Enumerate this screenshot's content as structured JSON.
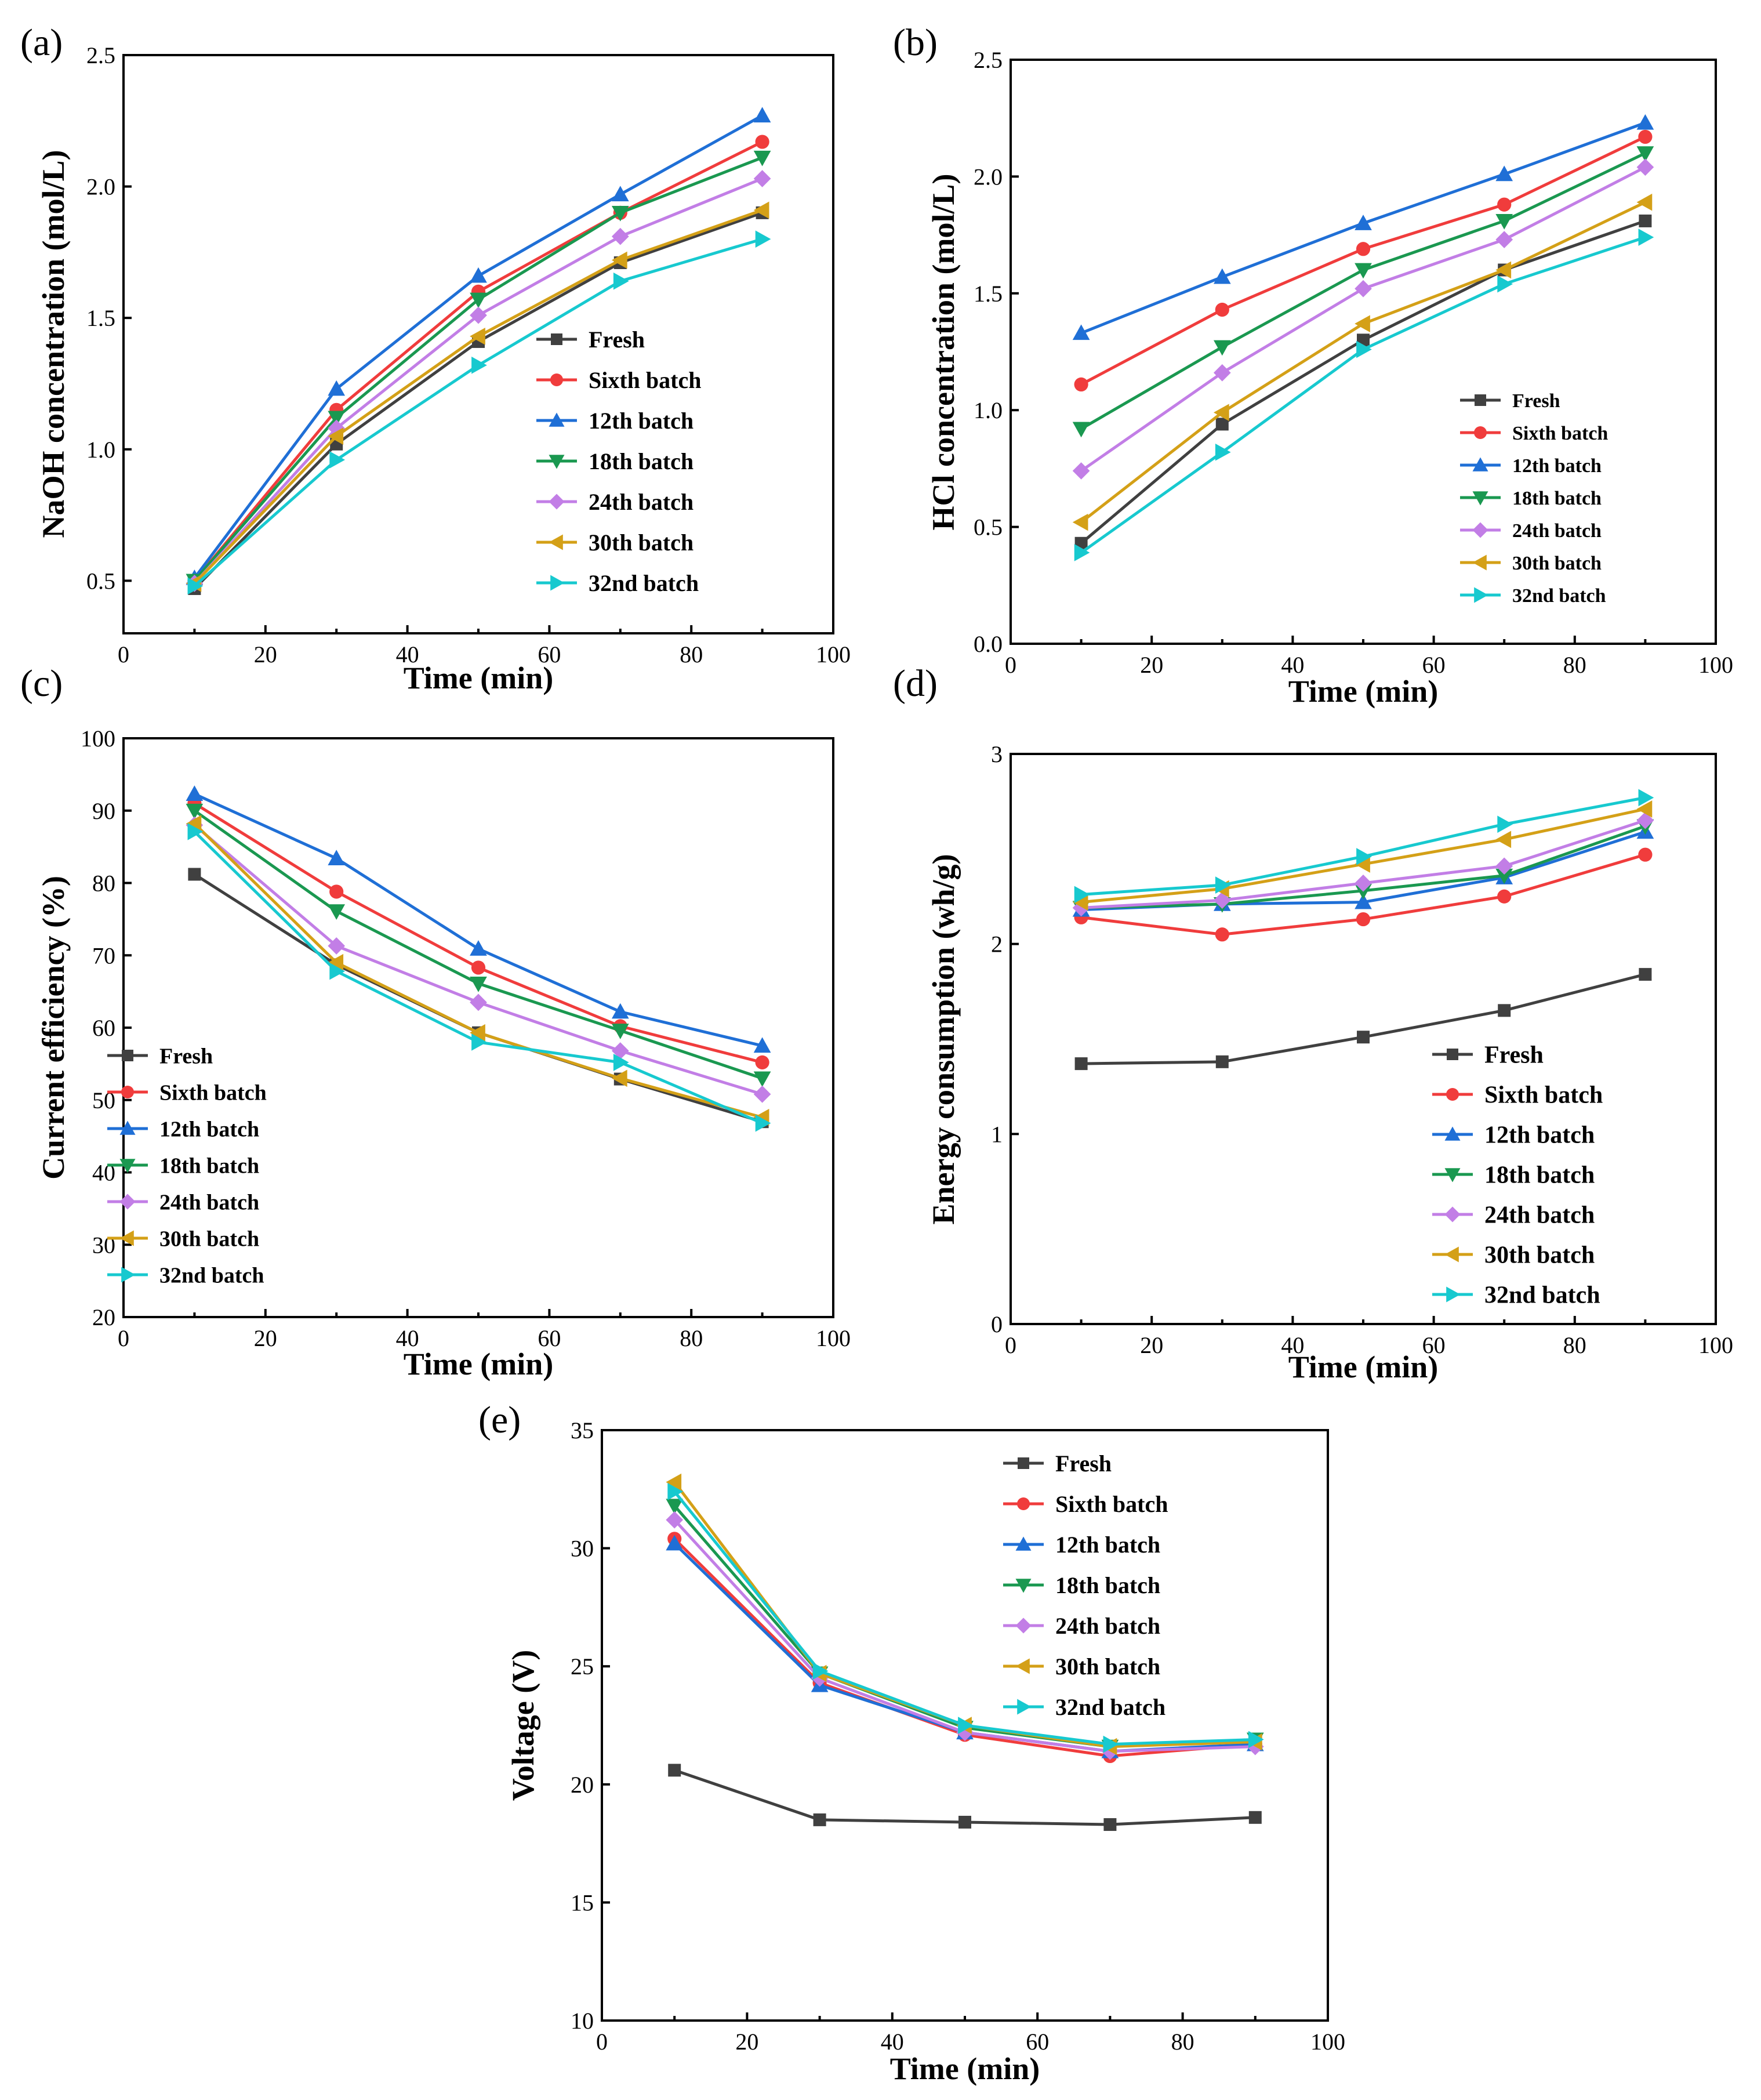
{
  "chart_data": [
    {
      "type": "line",
      "panel_label": "(a)",
      "xlabel": "Time (min)",
      "ylabel": "NaOH concentration (mol/L)",
      "xlim": [
        0,
        100
      ],
      "ylim": [
        0.3,
        2.5
      ],
      "xticks": [
        0,
        20,
        40,
        60,
        80,
        100
      ],
      "yticks": [
        0.5,
        1.0,
        1.5,
        2.0,
        2.5
      ],
      "ytick_labels": [
        "0.5",
        "1.0",
        "1.5",
        "2.0",
        "2.5"
      ],
      "legend_position": "right",
      "x": [
        10,
        30,
        50,
        70,
        90
      ],
      "series": [
        {
          "name": "Fresh",
          "color": "#404040",
          "marker": "square",
          "values": [
            0.47,
            1.02,
            1.41,
            1.71,
            1.9
          ]
        },
        {
          "name": "Sixth batch",
          "color": "#f03c3c",
          "marker": "circle",
          "values": [
            0.5,
            1.15,
            1.6,
            1.9,
            2.17
          ]
        },
        {
          "name": "12th batch",
          "color": "#1f6fd6",
          "marker": "triangle-up",
          "values": [
            0.51,
            1.23,
            1.66,
            1.97,
            2.27
          ]
        },
        {
          "name": "18th batch",
          "color": "#1a9850",
          "marker": "triangle-down",
          "values": [
            0.5,
            1.12,
            1.57,
            1.9,
            2.11
          ]
        },
        {
          "name": "24th batch",
          "color": "#c27ee6",
          "marker": "diamond",
          "values": [
            0.49,
            1.08,
            1.51,
            1.81,
            2.03
          ]
        },
        {
          "name": "30th batch",
          "color": "#d4a017",
          "marker": "triangle-left",
          "values": [
            0.49,
            1.05,
            1.43,
            1.72,
            1.91
          ]
        },
        {
          "name": "32nd batch",
          "color": "#17c9cf",
          "marker": "triangle-right",
          "values": [
            0.48,
            0.96,
            1.32,
            1.64,
            1.8
          ]
        }
      ]
    },
    {
      "type": "line",
      "panel_label": "(b)",
      "xlabel": "Time (min)",
      "ylabel": "HCl concentration (mol/L)",
      "xlim": [
        0,
        100
      ],
      "ylim": [
        0,
        2.5
      ],
      "xticks": [
        0,
        20,
        40,
        60,
        80,
        100
      ],
      "yticks": [
        0.0,
        0.5,
        1.0,
        1.5,
        2.0,
        2.5
      ],
      "ytick_labels": [
        "0.0",
        "0.5",
        "1.0",
        "1.5",
        "2.0",
        "2.5"
      ],
      "legend_position": "bottom-right",
      "x": [
        10,
        30,
        50,
        70,
        90
      ],
      "series": [
        {
          "name": "Fresh",
          "color": "#404040",
          "marker": "square",
          "values": [
            0.43,
            0.94,
            1.3,
            1.6,
            1.81
          ]
        },
        {
          "name": "Sixth batch",
          "color": "#f03c3c",
          "marker": "circle",
          "values": [
            1.11,
            1.43,
            1.69,
            1.88,
            2.17
          ]
        },
        {
          "name": "12th batch",
          "color": "#1f6fd6",
          "marker": "triangle-up",
          "values": [
            1.33,
            1.57,
            1.8,
            2.01,
            2.23
          ]
        },
        {
          "name": "18th batch",
          "color": "#1a9850",
          "marker": "triangle-down",
          "values": [
            0.92,
            1.27,
            1.6,
            1.81,
            2.1
          ]
        },
        {
          "name": "24th batch",
          "color": "#c27ee6",
          "marker": "diamond",
          "values": [
            0.74,
            1.16,
            1.52,
            1.73,
            2.04
          ]
        },
        {
          "name": "30th batch",
          "color": "#d4a017",
          "marker": "triangle-left",
          "values": [
            0.52,
            0.99,
            1.37,
            1.6,
            1.89
          ]
        },
        {
          "name": "32nd batch",
          "color": "#17c9cf",
          "marker": "triangle-right",
          "values": [
            0.39,
            0.82,
            1.26,
            1.54,
            1.74
          ]
        }
      ]
    },
    {
      "type": "line",
      "panel_label": "(c)",
      "xlabel": "Time (min)",
      "ylabel": "Current efficiency (%)",
      "xlim": [
        0,
        100
      ],
      "ylim": [
        20,
        100
      ],
      "xticks": [
        0,
        20,
        40,
        60,
        80,
        100
      ],
      "yticks": [
        20,
        30,
        40,
        50,
        60,
        70,
        80,
        90,
        100
      ],
      "ytick_labels": [
        "20",
        "30",
        "40",
        "50",
        "60",
        "70",
        "80",
        "90",
        "100"
      ],
      "legend_position": "bottom-left",
      "x": [
        10,
        30,
        50,
        70,
        90
      ],
      "series": [
        {
          "name": "Fresh",
          "color": "#404040",
          "marker": "square",
          "values": [
            81.2,
            68.7,
            59.3,
            52.9,
            47.0
          ]
        },
        {
          "name": "Sixth batch",
          "color": "#f03c3c",
          "marker": "circle",
          "values": [
            91.0,
            78.8,
            68.3,
            60.2,
            55.2
          ]
        },
        {
          "name": "12th batch",
          "color": "#1f6fd6",
          "marker": "triangle-up",
          "values": [
            92.3,
            83.4,
            70.9,
            62.2,
            57.5
          ]
        },
        {
          "name": "18th batch",
          "color": "#1a9850",
          "marker": "triangle-down",
          "values": [
            90.0,
            76.1,
            66.1,
            59.6,
            53.0
          ]
        },
        {
          "name": "24th batch",
          "color": "#c27ee6",
          "marker": "diamond",
          "values": [
            88.0,
            71.3,
            63.5,
            56.8,
            50.8
          ]
        },
        {
          "name": "30th batch",
          "color": "#d4a017",
          "marker": "triangle-left",
          "values": [
            88.2,
            69.0,
            59.3,
            53.0,
            47.6
          ]
        },
        {
          "name": "32nd batch",
          "color": "#17c9cf",
          "marker": "triangle-right",
          "values": [
            87.1,
            67.8,
            58.0,
            55.2,
            46.8
          ]
        }
      ]
    },
    {
      "type": "line",
      "panel_label": "(d)",
      "xlabel": "Time (min)",
      "ylabel": "Energy consumption (wh/g)",
      "xlim": [
        0,
        100
      ],
      "ylim": [
        0,
        3
      ],
      "xticks": [
        0,
        20,
        40,
        60,
        80,
        100
      ],
      "yticks": [
        0,
        1,
        2,
        3
      ],
      "ytick_labels": [
        "0",
        "1",
        "2",
        "3"
      ],
      "legend_position": "bottom-right",
      "x": [
        10,
        30,
        50,
        70,
        90
      ],
      "series": [
        {
          "name": "Fresh",
          "color": "#404040",
          "marker": "square",
          "values": [
            1.37,
            1.38,
            1.51,
            1.65,
            1.84
          ]
        },
        {
          "name": "Sixth batch",
          "color": "#f03c3c",
          "marker": "circle",
          "values": [
            2.14,
            2.05,
            2.13,
            2.25,
            2.47
          ]
        },
        {
          "name": "12th batch",
          "color": "#1f6fd6",
          "marker": "triangle-up",
          "values": [
            2.18,
            2.21,
            2.22,
            2.35,
            2.59
          ]
        },
        {
          "name": "18th batch",
          "color": "#1a9850",
          "marker": "triangle-down",
          "values": [
            2.19,
            2.21,
            2.28,
            2.36,
            2.62
          ]
        },
        {
          "name": "24th batch",
          "color": "#c27ee6",
          "marker": "diamond",
          "values": [
            2.19,
            2.23,
            2.32,
            2.41,
            2.65
          ]
        },
        {
          "name": "30th batch",
          "color": "#d4a017",
          "marker": "triangle-left",
          "values": [
            2.22,
            2.29,
            2.42,
            2.55,
            2.71
          ]
        },
        {
          "name": "32nd batch",
          "color": "#17c9cf",
          "marker": "triangle-right",
          "values": [
            2.26,
            2.31,
            2.46,
            2.63,
            2.77
          ]
        }
      ]
    },
    {
      "type": "line",
      "panel_label": "(e)",
      "xlabel": "Time (min)",
      "ylabel": "Voltage (V)",
      "xlim": [
        0,
        100
      ],
      "ylim": [
        10,
        35
      ],
      "xticks": [
        0,
        20,
        40,
        60,
        80,
        100
      ],
      "yticks": [
        10,
        15,
        20,
        25,
        30,
        35
      ],
      "ytick_labels": [
        "10",
        "15",
        "20",
        "25",
        "30",
        "35"
      ],
      "legend_position": "top-right",
      "x": [
        10,
        30,
        50,
        70,
        90
      ],
      "series": [
        {
          "name": "Fresh",
          "color": "#404040",
          "marker": "square",
          "values": [
            20.6,
            18.5,
            18.4,
            18.3,
            18.6
          ]
        },
        {
          "name": "Sixth batch",
          "color": "#f03c3c",
          "marker": "circle",
          "values": [
            30.4,
            24.3,
            22.1,
            21.2,
            21.7
          ]
        },
        {
          "name": "12th batch",
          "color": "#1f6fd6",
          "marker": "triangle-up",
          "values": [
            30.2,
            24.2,
            22.2,
            21.4,
            21.7
          ]
        },
        {
          "name": "18th batch",
          "color": "#1a9850",
          "marker": "triangle-down",
          "values": [
            31.8,
            24.7,
            22.4,
            21.6,
            21.9
          ]
        },
        {
          "name": "24th batch",
          "color": "#c27ee6",
          "marker": "diamond",
          "values": [
            31.2,
            24.5,
            22.2,
            21.4,
            21.6
          ]
        },
        {
          "name": "30th batch",
          "color": "#d4a017",
          "marker": "triangle-left",
          "values": [
            32.8,
            24.7,
            22.5,
            21.6,
            21.8
          ]
        },
        {
          "name": "32nd batch",
          "color": "#17c9cf",
          "marker": "triangle-right",
          "values": [
            32.4,
            24.8,
            22.5,
            21.7,
            21.9
          ]
        }
      ]
    }
  ]
}
